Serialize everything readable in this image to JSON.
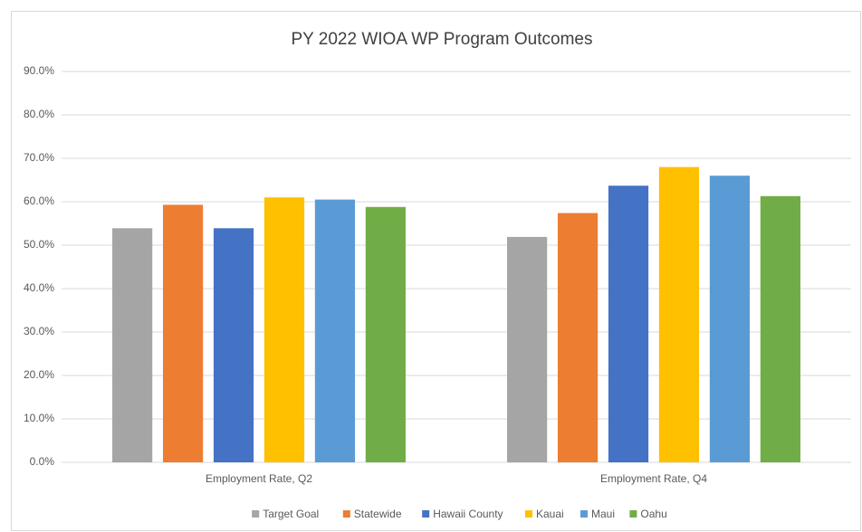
{
  "chart_data": {
    "type": "bar",
    "title": "PY 2022 WIOA WP Program Outcomes",
    "categories": [
      "Employment Rate, Q2",
      "Employment Rate, Q4"
    ],
    "series": [
      {
        "name": "Target Goal",
        "color": "#a5a5a5",
        "values": [
          53.9,
          51.9
        ]
      },
      {
        "name": "Statewide",
        "color": "#ed7d31",
        "values": [
          59.3,
          57.4
        ]
      },
      {
        "name": "Hawaii County",
        "color": "#4472c4",
        "values": [
          53.9,
          63.7
        ]
      },
      {
        "name": "Kauai",
        "color": "#ffc000",
        "values": [
          61.0,
          68.0
        ]
      },
      {
        "name": "Maui",
        "color": "#5b9bd5",
        "values": [
          60.5,
          66.0
        ]
      },
      {
        "name": "Oahu",
        "color": "#70ad47",
        "values": [
          58.8,
          61.3
        ]
      }
    ],
    "ylim": [
      0,
      90
    ],
    "yticks": [
      {
        "value": 0,
        "label": "0.0%"
      },
      {
        "value": 10,
        "label": "10.0%"
      },
      {
        "value": 20,
        "label": "20.0%"
      },
      {
        "value": 30,
        "label": "30.0%"
      },
      {
        "value": 40,
        "label": "40.0%"
      },
      {
        "value": 50,
        "label": "50.0%"
      },
      {
        "value": 60,
        "label": "60.0%"
      },
      {
        "value": 70,
        "label": "70.0%"
      },
      {
        "value": 80,
        "label": "80.0%"
      },
      {
        "value": 90,
        "label": "90.0%"
      }
    ],
    "grid": true,
    "legend": "bottom"
  }
}
